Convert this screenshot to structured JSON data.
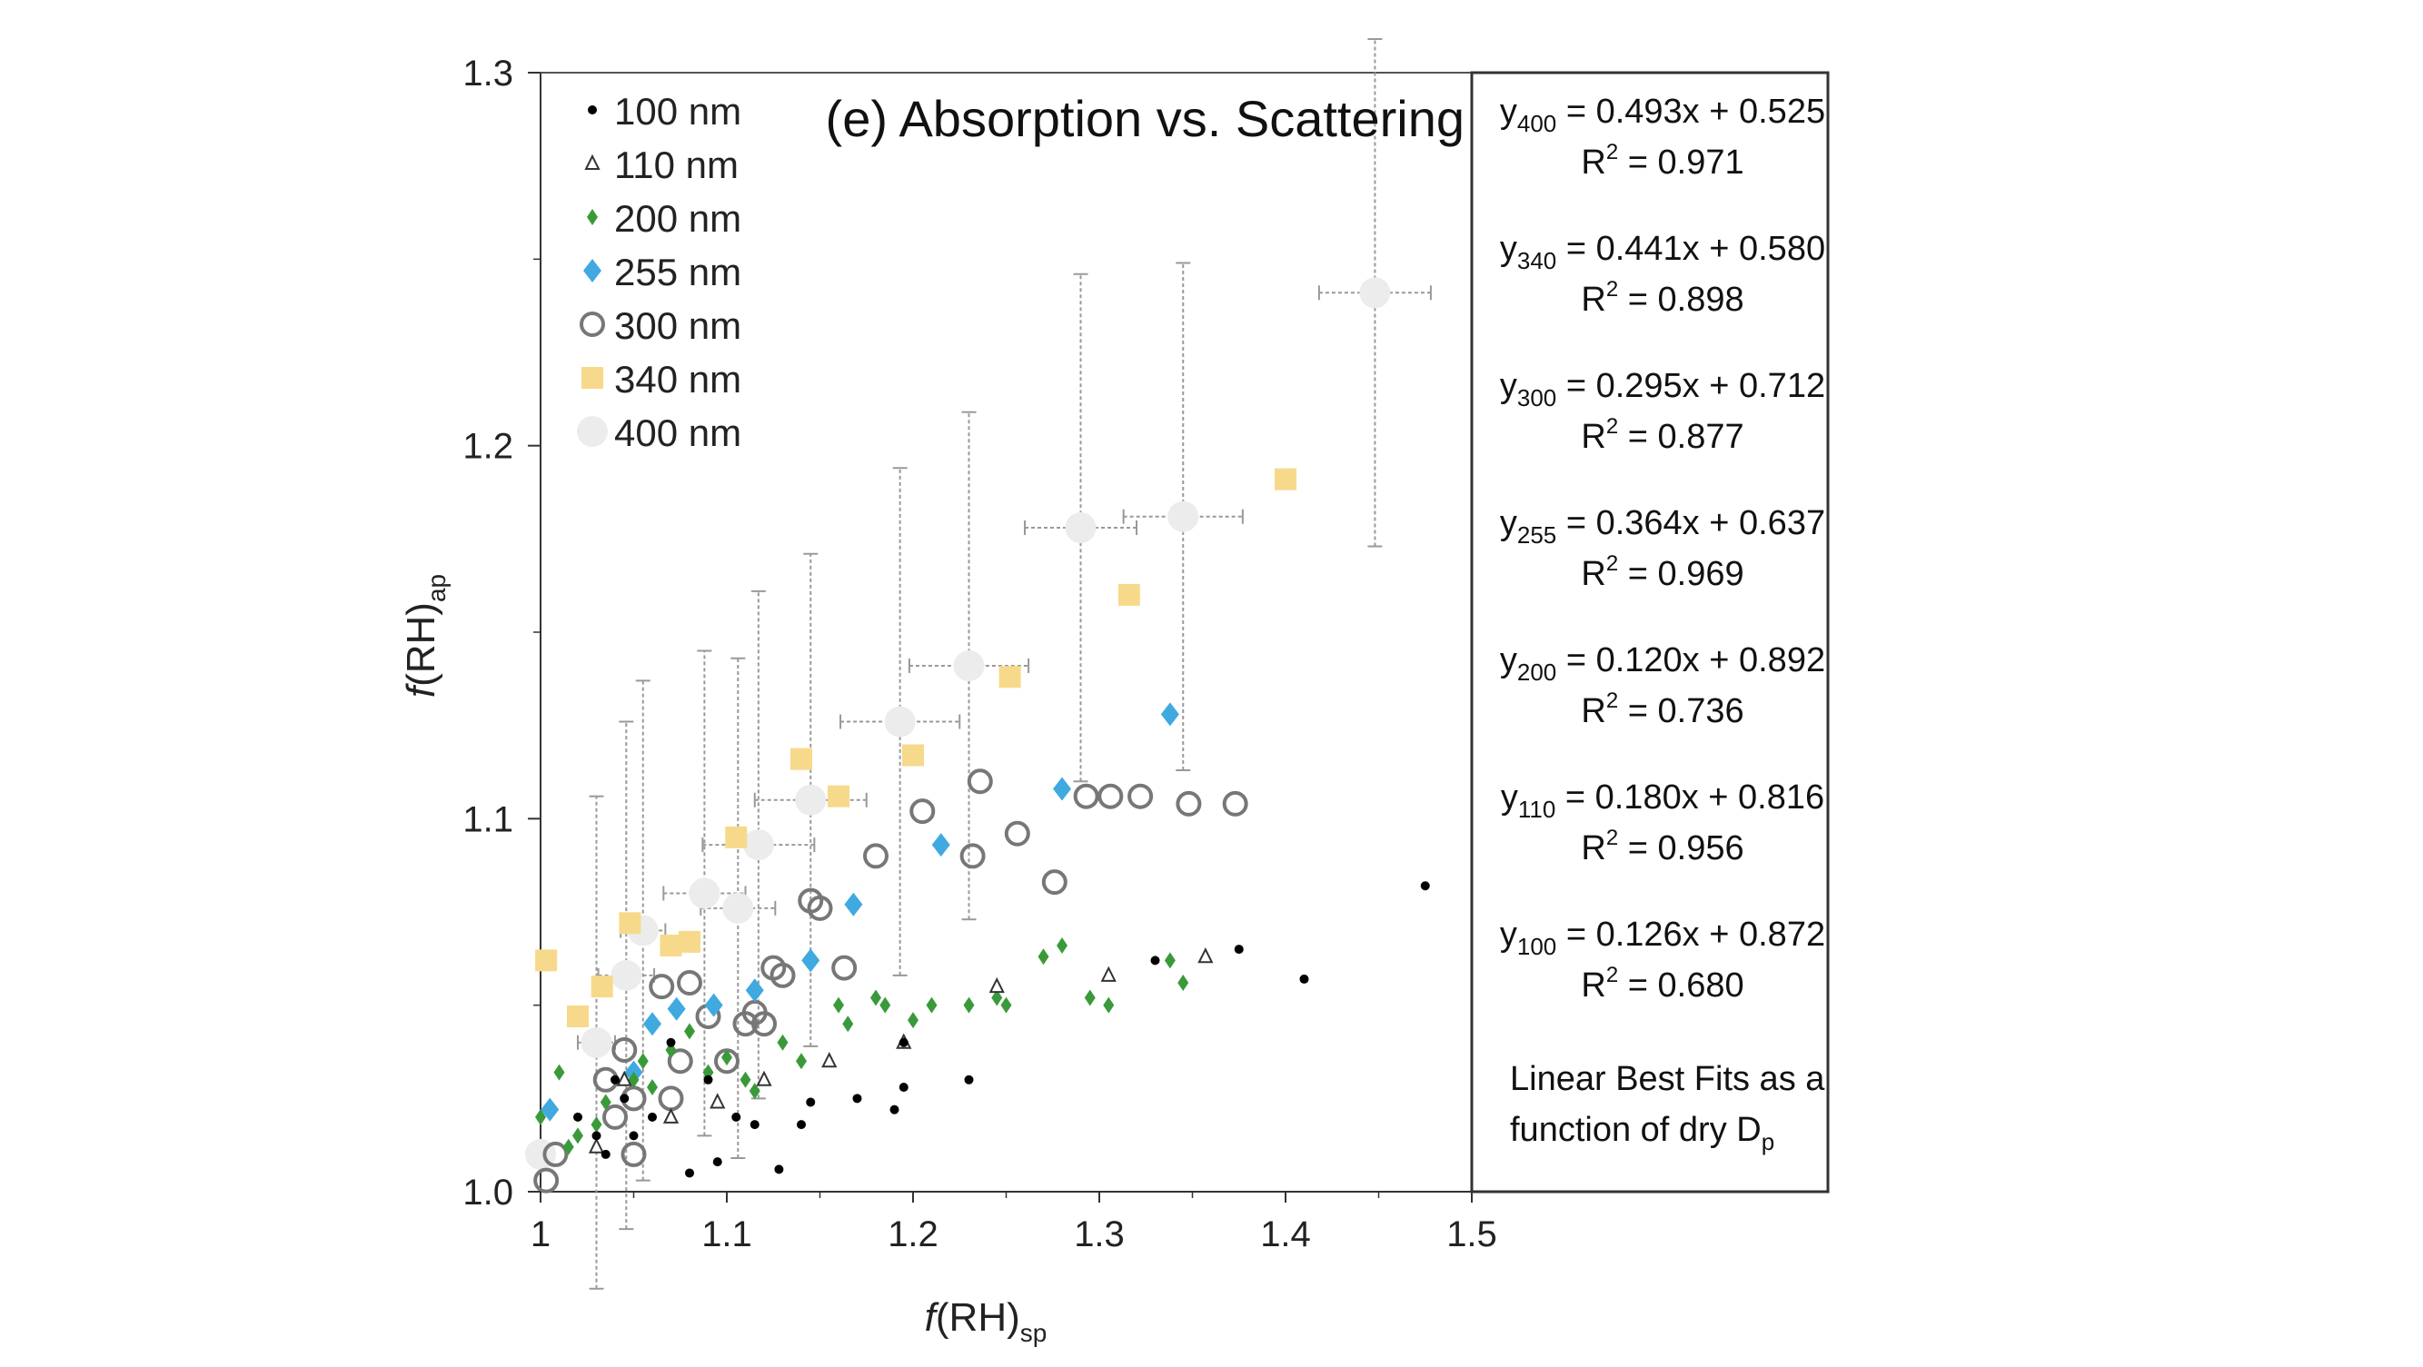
{
  "chart_data": {
    "type": "scatter",
    "title": "(e) Absorption vs. Scattering",
    "xlabel": {
      "italic": "f",
      "main": "(RH)",
      "sub": "sp"
    },
    "ylabel": {
      "italic": "f",
      "main": "(RH)",
      "sub": "ap"
    },
    "xlim": [
      1,
      1.5
    ],
    "ylim": [
      1.0,
      1.3
    ],
    "x_ticks": [
      "1",
      "1.1",
      "1.2",
      "1.3",
      "1.4",
      "1.5"
    ],
    "y_ticks": [
      "1.0",
      "1.1",
      "1.2",
      "1.3"
    ],
    "legend_position": "top-left",
    "series": [
      {
        "name": "100 nm",
        "marker": "dot",
        "color": "#000000",
        "points": [
          [
            1.02,
            1.02
          ],
          [
            1.03,
            1.015
          ],
          [
            1.035,
            1.01
          ],
          [
            1.04,
            1.03
          ],
          [
            1.045,
            1.025
          ],
          [
            1.05,
            1.015
          ],
          [
            1.06,
            1.02
          ],
          [
            1.07,
            1.04
          ],
          [
            1.08,
            1.005
          ],
          [
            1.09,
            1.03
          ],
          [
            1.095,
            1.008
          ],
          [
            1.105,
            1.02
          ],
          [
            1.115,
            1.018
          ],
          [
            1.128,
            1.006
          ],
          [
            1.14,
            1.018
          ],
          [
            1.145,
            1.024
          ],
          [
            1.17,
            1.025
          ],
          [
            1.19,
            1.022
          ],
          [
            1.195,
            1.028
          ],
          [
            1.195,
            1.04
          ],
          [
            1.23,
            1.03
          ],
          [
            1.33,
            1.062
          ],
          [
            1.375,
            1.065
          ],
          [
            1.41,
            1.057
          ],
          [
            1.475,
            1.082
          ]
        ]
      },
      {
        "name": "110 nm",
        "marker": "triangle",
        "color": "#333333",
        "points": [
          [
            1.03,
            1.012
          ],
          [
            1.045,
            1.03
          ],
          [
            1.07,
            1.02
          ],
          [
            1.095,
            1.024
          ],
          [
            1.12,
            1.03
          ],
          [
            1.155,
            1.035
          ],
          [
            1.195,
            1.04
          ],
          [
            1.245,
            1.055
          ],
          [
            1.305,
            1.058
          ],
          [
            1.357,
            1.063
          ]
        ]
      },
      {
        "name": "200 nm",
        "marker": "smalldiamond",
        "color": "#3a9a3a",
        "points": [
          [
            1.0,
            1.02
          ],
          [
            1.01,
            1.032
          ],
          [
            1.015,
            1.012
          ],
          [
            1.02,
            1.015
          ],
          [
            1.03,
            1.018
          ],
          [
            1.035,
            1.024
          ],
          [
            1.05,
            1.03
          ],
          [
            1.055,
            1.035
          ],
          [
            1.06,
            1.028
          ],
          [
            1.07,
            1.038
          ],
          [
            1.08,
            1.043
          ],
          [
            1.09,
            1.032
          ],
          [
            1.1,
            1.036
          ],
          [
            1.11,
            1.03
          ],
          [
            1.115,
            1.027
          ],
          [
            1.13,
            1.04
          ],
          [
            1.14,
            1.035
          ],
          [
            1.16,
            1.05
          ],
          [
            1.165,
            1.045
          ],
          [
            1.18,
            1.052
          ],
          [
            1.185,
            1.05
          ],
          [
            1.2,
            1.046
          ],
          [
            1.21,
            1.05
          ],
          [
            1.23,
            1.05
          ],
          [
            1.245,
            1.052
          ],
          [
            1.25,
            1.05
          ],
          [
            1.27,
            1.063
          ],
          [
            1.28,
            1.066
          ],
          [
            1.295,
            1.052
          ],
          [
            1.305,
            1.05
          ],
          [
            1.338,
            1.062
          ],
          [
            1.345,
            1.056
          ]
        ]
      },
      {
        "name": "255 nm",
        "marker": "diamond",
        "color": "#3fa9e0",
        "points": [
          [
            1.005,
            1.022
          ],
          [
            1.05,
            1.032
          ],
          [
            1.06,
            1.045
          ],
          [
            1.073,
            1.049
          ],
          [
            1.093,
            1.05
          ],
          [
            1.115,
            1.054
          ],
          [
            1.145,
            1.062
          ],
          [
            1.168,
            1.077
          ],
          [
            1.215,
            1.093
          ],
          [
            1.28,
            1.108
          ],
          [
            1.338,
            1.128
          ]
        ]
      },
      {
        "name": "300 nm",
        "marker": "circle",
        "color": "#777777",
        "points": [
          [
            1.003,
            1.003
          ],
          [
            1.008,
            1.01
          ],
          [
            1.035,
            1.03
          ],
          [
            1.04,
            1.02
          ],
          [
            1.045,
            1.038
          ],
          [
            1.05,
            1.025
          ],
          [
            1.05,
            1.01
          ],
          [
            1.065,
            1.055
          ],
          [
            1.07,
            1.025
          ],
          [
            1.075,
            1.035
          ],
          [
            1.08,
            1.056
          ],
          [
            1.09,
            1.047
          ],
          [
            1.1,
            1.035
          ],
          [
            1.11,
            1.045
          ],
          [
            1.115,
            1.048
          ],
          [
            1.12,
            1.045
          ],
          [
            1.125,
            1.06
          ],
          [
            1.13,
            1.058
          ],
          [
            1.145,
            1.078
          ],
          [
            1.15,
            1.076
          ],
          [
            1.163,
            1.06
          ],
          [
            1.18,
            1.09
          ],
          [
            1.205,
            1.102
          ],
          [
            1.232,
            1.09
          ],
          [
            1.236,
            1.11
          ],
          [
            1.256,
            1.096
          ],
          [
            1.276,
            1.083
          ],
          [
            1.293,
            1.106
          ],
          [
            1.306,
            1.106
          ],
          [
            1.322,
            1.106
          ],
          [
            1.348,
            1.104
          ],
          [
            1.373,
            1.104
          ]
        ]
      },
      {
        "name": "340 nm",
        "marker": "square",
        "color": "#f7d98b",
        "points": [
          [
            1.003,
            1.062
          ],
          [
            1.02,
            1.047
          ],
          [
            1.033,
            1.055
          ],
          [
            1.048,
            1.072
          ],
          [
            1.07,
            1.066
          ],
          [
            1.08,
            1.067
          ],
          [
            1.105,
            1.095
          ],
          [
            1.14,
            1.116
          ],
          [
            1.16,
            1.106
          ],
          [
            1.2,
            1.117
          ],
          [
            1.252,
            1.138
          ],
          [
            1.316,
            1.16
          ],
          [
            1.4,
            1.191
          ]
        ]
      },
      {
        "name": "400 nm",
        "marker": "bigcircle",
        "color": "#ececec",
        "points": [
          {
            "x": 1.0,
            "y": 1.01,
            "xerr": 0,
            "yerr": 0
          },
          {
            "x": 1.03,
            "y": 1.04,
            "xerr": 0.01,
            "yerr": 0.066
          },
          {
            "x": 1.046,
            "y": 1.058,
            "xerr": 0.015,
            "yerr": 0.068
          },
          {
            "x": 1.055,
            "y": 1.07,
            "xerr": 0.012,
            "yerr": 0.067
          },
          {
            "x": 1.088,
            "y": 1.08,
            "xerr": 0.022,
            "yerr": 0.065
          },
          {
            "x": 1.106,
            "y": 1.076,
            "xerr": 0.02,
            "yerr": 0.067
          },
          {
            "x": 1.117,
            "y": 1.093,
            "xerr": 0.03,
            "yerr": 0.068
          },
          {
            "x": 1.145,
            "y": 1.105,
            "xerr": 0.03,
            "yerr": 0.066
          },
          {
            "x": 1.193,
            "y": 1.126,
            "xerr": 0.032,
            "yerr": 0.068
          },
          {
            "x": 1.23,
            "y": 1.141,
            "xerr": 0.032,
            "yerr": 0.068
          },
          {
            "x": 1.29,
            "y": 1.178,
            "xerr": 0.03,
            "yerr": 0.068
          },
          {
            "x": 1.345,
            "y": 1.181,
            "xerr": 0.032,
            "yerr": 0.068
          },
          {
            "x": 1.448,
            "y": 1.241,
            "xerr": 0.03,
            "yerr": 0.068
          }
        ]
      }
    ],
    "equations": [
      {
        "sub": "400",
        "eq": " = 0.493x + 0.525",
        "r2": "= 0.971"
      },
      {
        "sub": "340",
        "eq": " = 0.441x + 0.580",
        "r2": "= 0.898"
      },
      {
        "sub": "300",
        "eq": " = 0.295x + 0.712",
        "r2": "= 0.877"
      },
      {
        "sub": "255",
        "eq": " = 0.364x + 0.637",
        "r2": "= 0.969"
      },
      {
        "sub": "200",
        "eq": " = 0.120x + 0.892",
        "r2": "= 0.736"
      },
      {
        "sub": "110",
        "eq": " = 0.180x + 0.816",
        "r2": "= 0.956"
      },
      {
        "sub": "100",
        "eq": " = 0.126x + 0.872",
        "r2": "= 0.680"
      }
    ],
    "note_line1": "Linear Best Fits as a",
    "note_line2": "function of dry D",
    "note_sub": "p"
  }
}
